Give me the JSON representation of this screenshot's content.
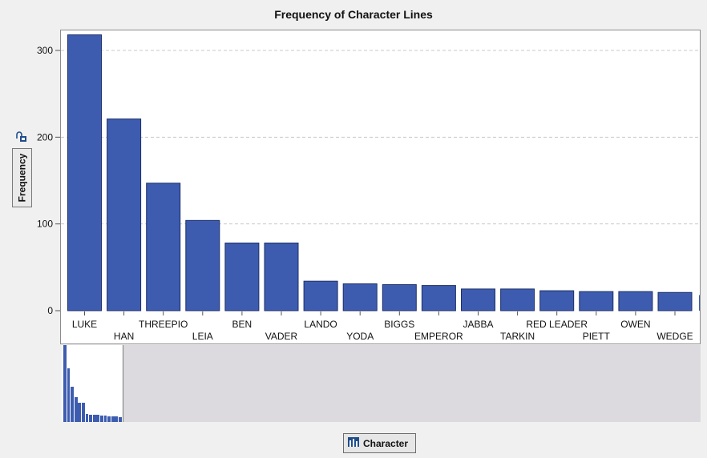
{
  "chart_data": {
    "type": "bar",
    "title": "Frequency of Character Lines",
    "ylabel": "Frequency",
    "xlabel": "Character",
    "ylim": [
      0,
      325
    ],
    "yticks": [
      0,
      100,
      200,
      300
    ],
    "grid": "horizontal dashed",
    "categories": [
      "LUKE",
      "HAN",
      "THREEPIO",
      "LEIA",
      "BEN",
      "VADER",
      "LANDO",
      "YODA",
      "BIGGS",
      "EMPEROR",
      "JABBA",
      "TARKIN",
      "RED LEADER",
      "PIETT",
      "OWEN",
      "WEDGE"
    ],
    "values": [
      318,
      221,
      147,
      104,
      78,
      78,
      34,
      31,
      30,
      29,
      25,
      25,
      23,
      22,
      22,
      21
    ],
    "bar_color": "#3d5cb0"
  },
  "overview": {
    "selected_window_fraction": 0.095
  },
  "controls": {
    "y_role_button": "Frequency",
    "x_role_button": "Character"
  }
}
